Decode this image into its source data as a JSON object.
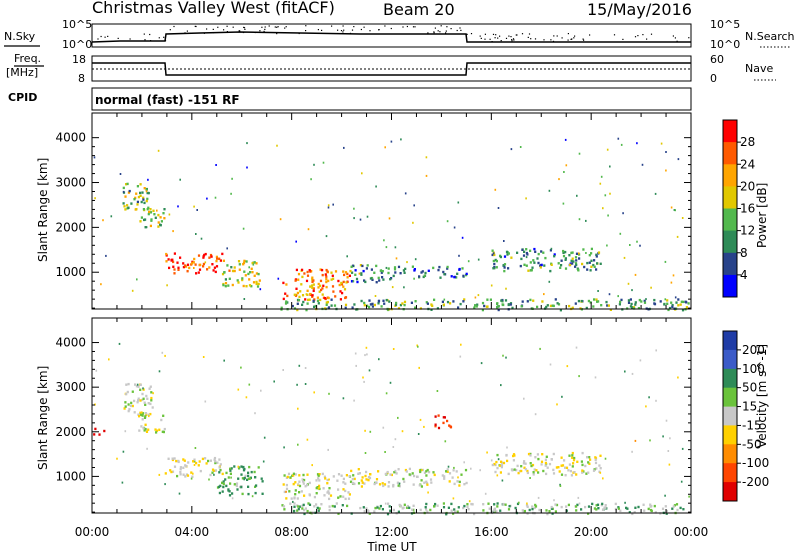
{
  "header": {
    "title": "Christmas Valley West (fitACF)",
    "beam": "Beam 20",
    "date": "15/May/2016"
  },
  "side_labels": {
    "nsky": "N.Sky",
    "nsearch": "N.Search",
    "freq_line1": "Freq.",
    "freq_line2": "[MHz]",
    "nave": "Nave",
    "cpid": "CPID"
  },
  "noise_panel": {
    "left_ticks": [
      "10^5",
      "10^0"
    ],
    "right_ticks": [
      "10^5",
      "10^0"
    ]
  },
  "freq_panel": {
    "left_ticks": [
      "18",
      "8"
    ],
    "right_ticks": [
      "60",
      "0"
    ]
  },
  "cpid_panel": {
    "text": "normal (fast) -151 RF"
  },
  "axes": {
    "x_ticks": [
      "00:00",
      "04:00",
      "08:00",
      "12:00",
      "16:00",
      "20:00",
      "00:00"
    ],
    "x_label": "Time UT",
    "y_ticks": [
      "1000",
      "2000",
      "3000",
      "4000"
    ],
    "y_label": "Slant Range [km]"
  },
  "power_colorbar": {
    "label": "Power [dB]",
    "ticks": [
      "28",
      "24",
      "20",
      "16",
      "12",
      "8",
      "4"
    ],
    "colors": [
      "#ff0000",
      "#ff5a00",
      "#ffa500",
      "#e1c800",
      "#52b84d",
      "#2e8b57",
      "#28438a",
      "#0000ff"
    ]
  },
  "velocity_colorbar": {
    "label": "Velocity [m s^-1]",
    "ticks": [
      "200",
      "100",
      "50",
      "15",
      "-15",
      "-50",
      "-100",
      "-200"
    ],
    "colors": [
      "#1f3ca6",
      "#3b5bc8",
      "#2e8b57",
      "#6ac33b",
      "#c8c8c8",
      "#ffd000",
      "#ff8c00",
      "#ff4500",
      "#e00000"
    ]
  },
  "chart_data": [
    {
      "type": "heatmap",
      "panel": "power",
      "x_unit": "hours UT",
      "y_unit": "km",
      "xlim": [
        0,
        24
      ],
      "ylim": [
        180,
        4550
      ],
      "colorbar_range": [
        0,
        32
      ],
      "regions": [
        {
          "t0": 1.2,
          "t1": 2.4,
          "r0": 2400,
          "r1": 3000,
          "value": 14
        },
        {
          "t0": 1.8,
          "t1": 2.9,
          "r0": 2000,
          "r1": 2450,
          "value": 16
        },
        {
          "t0": 2.9,
          "t1": 5.2,
          "r0": 1000,
          "r1": 1450,
          "value": 27
        },
        {
          "t0": 5.2,
          "t1": 6.8,
          "r0": 700,
          "r1": 1300,
          "value": 18
        },
        {
          "t0": 7.6,
          "t1": 10.3,
          "r0": 400,
          "r1": 1100,
          "value": 24
        },
        {
          "t0": 10.3,
          "t1": 12.0,
          "r0": 800,
          "r1": 1200,
          "value": 10
        },
        {
          "t0": 12.0,
          "t1": 15.0,
          "r0": 900,
          "r1": 1150,
          "value": 9
        },
        {
          "t0": 16.0,
          "t1": 20.4,
          "r0": 1050,
          "r1": 1550,
          "value": 10
        },
        {
          "t0": 7.5,
          "t1": 24.0,
          "r0": 180,
          "r1": 420,
          "value": 12
        }
      ]
    },
    {
      "type": "heatmap",
      "panel": "velocity",
      "x_unit": "hours UT",
      "y_unit": "km",
      "xlim": [
        0,
        24
      ],
      "ylim": [
        180,
        4550
      ],
      "colorbar_range": [
        -200,
        200
      ],
      "regions": [
        {
          "t0": 1.2,
          "t1": 2.4,
          "r0": 2400,
          "r1": 3100,
          "value": 0
        },
        {
          "t0": 1.8,
          "t1": 2.9,
          "r0": 2000,
          "r1": 2450,
          "value": 0
        },
        {
          "t0": 0.0,
          "t1": 0.5,
          "r0": 1950,
          "r1": 2100,
          "value": -200
        },
        {
          "t0": 2.9,
          "t1": 5.2,
          "r0": 1000,
          "r1": 1450,
          "value": 0
        },
        {
          "t0": 5.0,
          "t1": 6.8,
          "r0": 600,
          "r1": 1250,
          "value": 40
        },
        {
          "t0": 7.6,
          "t1": 10.3,
          "r0": 500,
          "r1": 1100,
          "value": 0
        },
        {
          "t0": 10.3,
          "t1": 15.0,
          "r0": 800,
          "r1": 1200,
          "value": 0
        },
        {
          "t0": 13.7,
          "t1": 14.4,
          "r0": 2100,
          "r1": 2400,
          "value": -150
        },
        {
          "t0": 16.0,
          "t1": 20.4,
          "r0": 1050,
          "r1": 1550,
          "value": 0
        },
        {
          "t0": 7.5,
          "t1": 24.0,
          "r0": 180,
          "r1": 420,
          "value": 20
        }
      ]
    }
  ]
}
